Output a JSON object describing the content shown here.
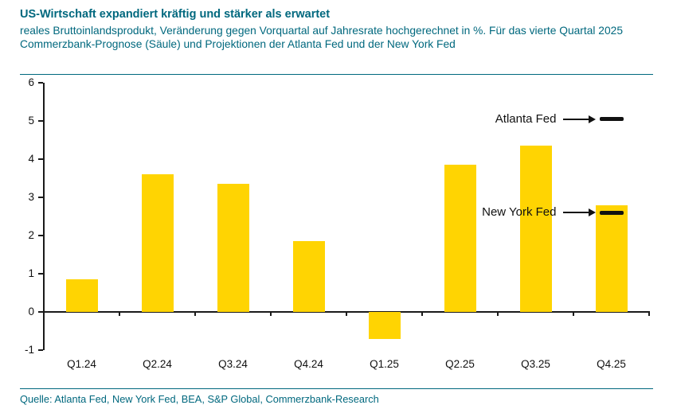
{
  "header": {
    "title": "US-Wirtschaft expandiert kräftig und stärker als erwartet",
    "subtitle": "reales Bruttoinlandsprodukt, Veränderung gegen Vorquartal auf Jahresrate hochgerechnet in %. Für das vierte Quartal 2025 Commerzbank-Prognose (Säule) und Projektionen der Atlanta Fed und der New York Fed"
  },
  "footer": {
    "source": "Quelle: Atlanta Fed, New York Fed, BEA, S&P Global, Commerzbank-Research"
  },
  "colors": {
    "accent_teal": "#00687e",
    "bar_yellow": "#ffd402",
    "axis_black": "#1a1a1a",
    "marker_black": "#111111",
    "tick_label": "#111111"
  },
  "chart_data": {
    "type": "bar",
    "title": "US-Wirtschaft expandiert kräftig und stärker als erwartet",
    "subtitle": "reales Bruttoinlandsprodukt, Veränderung gegen Vorquartal auf Jahresrate hochgerechnet in %",
    "xlabel": "",
    "ylabel": "",
    "unit": "%",
    "categories": [
      "Q1.24",
      "Q2.24",
      "Q3.24",
      "Q4.24",
      "Q1.25",
      "Q2.25",
      "Q3.25",
      "Q4.25"
    ],
    "values": [
      0.85,
      3.6,
      3.35,
      1.85,
      -0.7,
      3.85,
      4.35,
      2.8
    ],
    "ylim": [
      -1,
      6
    ],
    "yticks": [
      -1,
      0,
      1,
      2,
      3,
      4,
      5,
      6
    ],
    "grid": false,
    "legend": "none",
    "annotations": [
      {
        "label": "Atlanta Fed",
        "value": 5.05,
        "category": "Q4.25"
      },
      {
        "label": "New York Fed",
        "value": 2.6,
        "category": "Q4.25"
      }
    ]
  }
}
